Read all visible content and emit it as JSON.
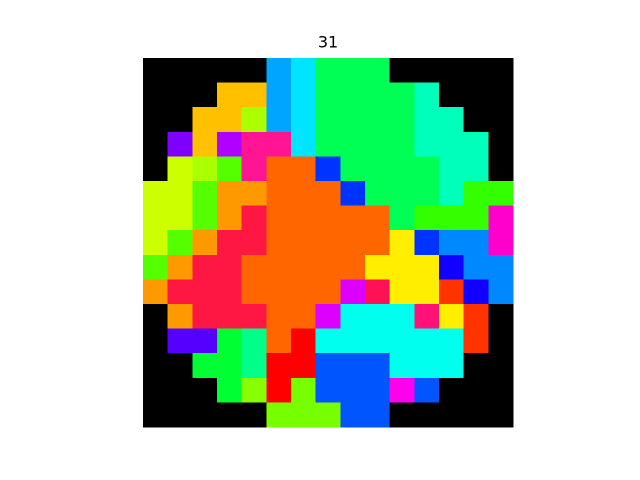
{
  "chart_data": {
    "type": "image",
    "title": "31",
    "cells": [
      [
        "#000000",
        "#000000",
        "#000000",
        "#000000",
        "#000000",
        "#00a5ff",
        "#00e5ff",
        "#00ff55",
        "#00ff55",
        "#00ff55",
        "#000000",
        "#000000",
        "#000000",
        "#000000",
        "#000000"
      ],
      [
        "#000000",
        "#000000",
        "#000000",
        "#ffc000",
        "#ffc000",
        "#00a5ff",
        "#00e5ff",
        "#00ff55",
        "#00ff55",
        "#00ff55",
        "#00ff55",
        "#00ffbb",
        "#000000",
        "#000000",
        "#000000"
      ],
      [
        "#000000",
        "#000000",
        "#ffc000",
        "#ffc000",
        "#aaff00",
        "#00a5ff",
        "#00e5ff",
        "#00ff55",
        "#00ff55",
        "#00ff55",
        "#00ff55",
        "#00ffbb",
        "#00ffbb",
        "#000000",
        "#000000"
      ],
      [
        "#000000",
        "#7f00ff",
        "#ffc000",
        "#b000ff",
        "#ff1493",
        "#ff1493",
        "#00e5ff",
        "#00ff55",
        "#00ff55",
        "#00ff55",
        "#00ff55",
        "#00ffbb",
        "#00ffbb",
        "#00ffbb",
        "#000000"
      ],
      [
        "#000000",
        "#ccff00",
        "#aaff00",
        "#55ff00",
        "#ff1493",
        "#ff6600",
        "#ff6600",
        "#0033ff",
        "#00ff55",
        "#00ff55",
        "#00ff55",
        "#00ff55",
        "#00ffbb",
        "#00ffbb",
        "#000000"
      ],
      [
        "#ccff00",
        "#ccff00",
        "#55ff00",
        "#ff9900",
        "#ff9900",
        "#ff6600",
        "#ff6600",
        "#ff6600",
        "#0033ff",
        "#00ff55",
        "#00ff55",
        "#00ff55",
        "#00ffbb",
        "#33ff00",
        "#33ff00"
      ],
      [
        "#ccff00",
        "#ccff00",
        "#55ff00",
        "#ff9900",
        "#ff1744",
        "#ff6600",
        "#ff6600",
        "#ff6600",
        "#ff6600",
        "#ff6600",
        "#00ff55",
        "#33ff00",
        "#33ff00",
        "#33ff00",
        "#ff00cc"
      ],
      [
        "#ccff00",
        "#55ff00",
        "#ff9900",
        "#ff1744",
        "#ff1744",
        "#ff6600",
        "#ff6600",
        "#ff6600",
        "#ff6600",
        "#ff6600",
        "#ffee00",
        "#0033ff",
        "#0088ff",
        "#0088ff",
        "#ff00cc"
      ],
      [
        "#55ff00",
        "#ff9900",
        "#ff1744",
        "#ff1744",
        "#ff6600",
        "#ff6600",
        "#ff6600",
        "#ff6600",
        "#ff6600",
        "#ffee00",
        "#ffee00",
        "#ffee00",
        "#1100ff",
        "#0088ff",
        "#0088ff"
      ],
      [
        "#ff9900",
        "#ff1744",
        "#ff1744",
        "#ff1744",
        "#ff6600",
        "#ff6600",
        "#ff6600",
        "#ff6600",
        "#dd00ff",
        "#ff1155",
        "#ffee00",
        "#ffee00",
        "#ff3300",
        "#1100ff",
        "#0088ff"
      ],
      [
        "#000000",
        "#ff9900",
        "#ff1744",
        "#ff1744",
        "#ff1744",
        "#ff6600",
        "#ff6600",
        "#dd00ff",
        "#00ffee",
        "#00ffee",
        "#00ffee",
        "#ff1177",
        "#ffee00",
        "#ff3300",
        "#000000"
      ],
      [
        "#000000",
        "#5500ff",
        "#5500ff",
        "#00ff33",
        "#00ff88",
        "#ff6600",
        "#ff0000",
        "#00ffee",
        "#00ffee",
        "#00ffee",
        "#00ffee",
        "#00ffee",
        "#00ffee",
        "#ff3300",
        "#000000"
      ],
      [
        "#000000",
        "#000000",
        "#00ff33",
        "#00ff33",
        "#00ff88",
        "#ff0000",
        "#ff0000",
        "#0055ff",
        "#0055ff",
        "#0055ff",
        "#00ffee",
        "#00ffee",
        "#00ffee",
        "#000000",
        "#000000"
      ],
      [
        "#000000",
        "#000000",
        "#000000",
        "#00ff33",
        "#88ff00",
        "#ff0000",
        "#77ff00",
        "#0055ff",
        "#0055ff",
        "#0055ff",
        "#ff00ee",
        "#0055ff",
        "#000000",
        "#000000",
        "#000000"
      ],
      [
        "#000000",
        "#000000",
        "#000000",
        "#000000",
        "#000000",
        "#77ff00",
        "#77ff00",
        "#77ff00",
        "#0055ff",
        "#0055ff",
        "#000000",
        "#000000",
        "#000000",
        "#000000",
        "#000000"
      ]
    ]
  }
}
